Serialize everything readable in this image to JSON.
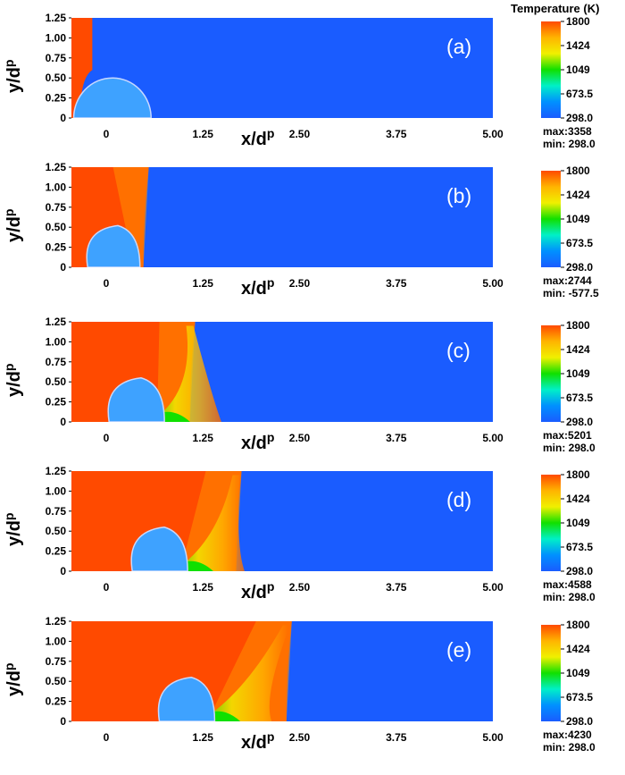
{
  "colorbar": {
    "title": "Temperature (K)",
    "ticks": [
      "1800",
      "1424",
      "1049",
      "673.5",
      "298.0"
    ],
    "colors": [
      "#ff4a00",
      "#ffb400",
      "#f0f000",
      "#10e000",
      "#00f0c8",
      "#0090ff",
      "#1a5cff"
    ]
  },
  "axes": {
    "y_ticks": [
      "1.25",
      "1.00",
      "0.75",
      "0.50",
      "0.25",
      "0"
    ],
    "x_ticks": [
      "0",
      "1.25",
      "2.50",
      "3.75",
      "5.00"
    ],
    "x_label": "x/d",
    "x_label_sup": "p",
    "y_label": "y/d",
    "y_label_sup": "p"
  },
  "colors": {
    "cold": "#1a5cff",
    "hot": "#ff4a00",
    "droplet": "#3ea2ff",
    "droplet_edge": "#c8d8ff"
  },
  "panels": [
    {
      "tag": "(a)",
      "max": "max:3358",
      "min": "min: 298.0",
      "front_x": -0.18,
      "droplet_x": 0.08,
      "droplet_r": 0.5,
      "stage": 0
    },
    {
      "tag": "(b)",
      "max": "max:2744",
      "min": "min: -577.5",
      "front_x": 0.55,
      "droplet_x": 0.15,
      "droplet_r": 0.52,
      "stage": 1
    },
    {
      "tag": "(c)",
      "max": "max:5201",
      "min": "min: 298.0",
      "front_x": 1.15,
      "droplet_x": 0.45,
      "droplet_r": 0.55,
      "stage": 2
    },
    {
      "tag": "(d)",
      "max": "max:4588",
      "min": "min: 298.0",
      "front_x": 1.75,
      "droplet_x": 0.75,
      "droplet_r": 0.55,
      "stage": 3
    },
    {
      "tag": "(e)",
      "max": "max:4230",
      "min": "min: 298.0",
      "front_x": 2.4,
      "droplet_x": 1.1,
      "droplet_r": 0.55,
      "stage": 4
    }
  ]
}
